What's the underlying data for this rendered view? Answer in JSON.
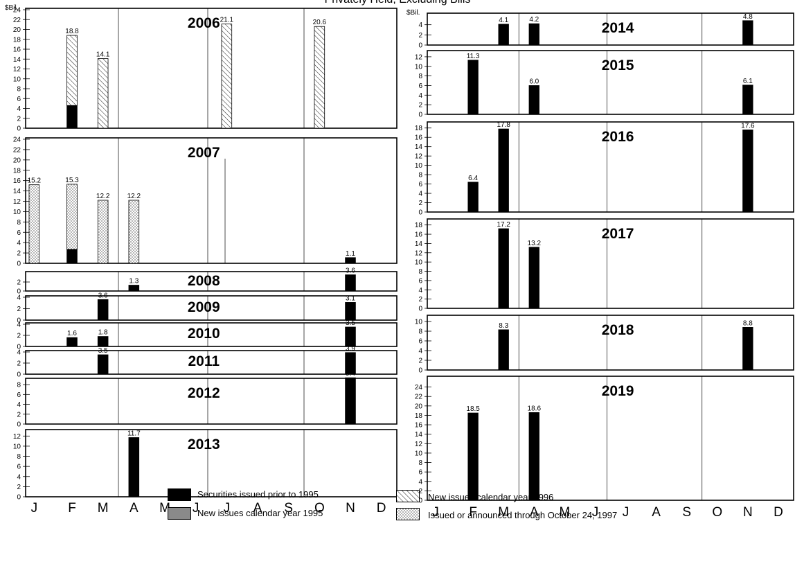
{
  "title": "Privately Held, Excluding Bills",
  "y_unit": "$Bil.",
  "months": [
    "J",
    "F",
    "M",
    "A",
    "M",
    "J",
    "J",
    "A",
    "S",
    "O",
    "N",
    "D"
  ],
  "chart_data": [
    {
      "type": "bar",
      "year": "2006",
      "ylim": [
        0,
        24
      ],
      "yticks": [
        0,
        2,
        4,
        6,
        8,
        10,
        12,
        14,
        16,
        18,
        20,
        22,
        24
      ],
      "unit": "$Bil.",
      "bars": [
        {
          "month": "F",
          "total": 18.8,
          "label": "18.8",
          "segments": [
            {
              "series": "Securities issued prior to 1995",
              "value": 4.6
            },
            {
              "series": "New issues calendar year 1996",
              "value": 14.2
            }
          ]
        },
        {
          "month": "M",
          "total": 14.1,
          "label": "14.1",
          "segments": [
            {
              "series": "New issues calendar year 1996",
              "value": 14.1
            }
          ]
        },
        {
          "month": "J",
          "total": 21.1,
          "label": "21.1",
          "segments": [
            {
              "series": "New issues calendar year 1996",
              "value": 21.1
            }
          ]
        },
        {
          "month": "O",
          "total": 20.6,
          "label": "20.6",
          "segments": [
            {
              "series": "New issues calendar year 1996",
              "value": 20.6
            }
          ]
        }
      ]
    },
    {
      "type": "bar",
      "year": "2007",
      "ylim": [
        0,
        24
      ],
      "yticks": [
        0,
        2,
        4,
        6,
        8,
        10,
        12,
        14,
        16,
        18,
        20,
        22,
        24
      ],
      "bars": [
        {
          "month": "J",
          "total": 15.2,
          "label": "15.2",
          "segments": [
            {
              "series": "Issued or announced through October 24, 1997",
              "value": 15.2
            }
          ]
        },
        {
          "month": "F",
          "total": 15.3,
          "label": "15.3",
          "segments": [
            {
              "series": "Securities issued prior to 1995",
              "value": 2.7
            },
            {
              "series": "Issued or announced through October 24, 1997",
              "value": 12.6
            }
          ]
        },
        {
          "month": "M",
          "total": 12.2,
          "label": "12.2",
          "segments": [
            {
              "series": "Issued or announced through October 24, 1997",
              "value": 12.2
            }
          ]
        },
        {
          "month": "A",
          "total": 12.2,
          "label": "12.2",
          "segments": [
            {
              "series": "Issued or announced through October 24, 1997",
              "value": 12.2
            }
          ]
        },
        {
          "month": "N",
          "total": 1.1,
          "label": "1.1",
          "segments": [
            {
              "series": "Securities issued prior to 1995",
              "value": 1.1
            }
          ]
        }
      ]
    },
    {
      "type": "bar",
      "year": "2008",
      "ylim": [
        0,
        4
      ],
      "yticks": [
        0,
        2
      ],
      "bars": [
        {
          "month": "A",
          "total": 1.3,
          "label": "1.3",
          "segments": [
            {
              "series": "Securities issued prior to 1995",
              "value": 1.3
            }
          ]
        },
        {
          "month": "N",
          "total": 3.6,
          "label": "3.6",
          "segments": [
            {
              "series": "Securities issued prior to 1995",
              "value": 3.6
            }
          ]
        }
      ]
    },
    {
      "type": "bar",
      "year": "2009",
      "ylim": [
        0,
        4
      ],
      "yticks": [
        0,
        2,
        4
      ],
      "bars": [
        {
          "month": "M",
          "total": 3.6,
          "label": "3.6",
          "segments": [
            {
              "series": "Securities issued prior to 1995",
              "value": 3.6
            }
          ]
        },
        {
          "month": "N",
          "total": 3.1,
          "label": "3.1",
          "segments": [
            {
              "series": "Securities issued prior to 1995",
              "value": 3.1
            }
          ]
        }
      ]
    },
    {
      "type": "bar",
      "year": "2010",
      "ylim": [
        0,
        4
      ],
      "yticks": [
        0,
        2,
        4
      ],
      "bars": [
        {
          "month": "F",
          "total": 1.6,
          "label": "1.6",
          "segments": [
            {
              "series": "Securities issued prior to 1995",
              "value": 1.6
            }
          ]
        },
        {
          "month": "M",
          "total": 1.8,
          "label": "1.8",
          "segments": [
            {
              "series": "Securities issued prior to 1995",
              "value": 1.8
            }
          ]
        },
        {
          "month": "N",
          "total": 3.5,
          "label": "3.5",
          "segments": [
            {
              "series": "Securities issued prior to 1995",
              "value": 3.5
            }
          ]
        }
      ]
    },
    {
      "type": "bar",
      "year": "2011",
      "ylim": [
        0,
        4
      ],
      "yticks": [
        0,
        2,
        4
      ],
      "bars": [
        {
          "month": "M",
          "total": 3.5,
          "label": "3.5",
          "segments": [
            {
              "series": "Securities issued prior to 1995",
              "value": 3.5
            }
          ]
        },
        {
          "month": "N",
          "total": 3.9,
          "label": "3.9",
          "segments": [
            {
              "series": "Securities issued prior to 1995",
              "value": 3.9
            }
          ]
        }
      ]
    },
    {
      "type": "bar",
      "year": "2012",
      "ylim": [
        0,
        9
      ],
      "yticks": [
        0,
        2,
        4,
        6,
        8
      ],
      "bars": [
        {
          "month": "N",
          "total": 9.4,
          "label": "9.4",
          "segments": [
            {
              "series": "Securities issued prior to 1995",
              "value": 9.4
            }
          ]
        }
      ]
    },
    {
      "type": "bar",
      "year": "2013",
      "ylim": [
        0,
        13
      ],
      "yticks": [
        0,
        2,
        4,
        6,
        8,
        10,
        12
      ],
      "bars": [
        {
          "month": "A",
          "total": 11.7,
          "label": "11.7",
          "segments": [
            {
              "series": "Securities issued prior to 1995",
              "value": 11.7
            }
          ]
        }
      ]
    },
    {
      "type": "bar",
      "year": "2014",
      "ylim": [
        0,
        6
      ],
      "yticks": [
        0,
        2,
        4
      ],
      "unit": "$Bil.",
      "bars": [
        {
          "month": "M",
          "total": 4.1,
          "label": "4.1",
          "segments": [
            {
              "series": "Securities issued prior to 1995",
              "value": 4.1
            }
          ]
        },
        {
          "month": "A",
          "total": 4.2,
          "label": "4.2",
          "segments": [
            {
              "series": "Securities issued prior to 1995",
              "value": 4.2
            }
          ]
        },
        {
          "month": "N",
          "total": 4.8,
          "label": "4.8",
          "segments": [
            {
              "series": "Securities issued prior to 1995",
              "value": 4.8
            }
          ]
        }
      ]
    },
    {
      "type": "bar",
      "year": "2015",
      "ylim": [
        0,
        13
      ],
      "yticks": [
        0,
        2,
        4,
        6,
        8,
        10,
        12
      ],
      "bars": [
        {
          "month": "F",
          "total": 11.3,
          "label": "11.3",
          "segments": [
            {
              "series": "Securities issued prior to 1995",
              "value": 11.3
            }
          ]
        },
        {
          "month": "A",
          "total": 6.0,
          "label": "6.0",
          "segments": [
            {
              "series": "Securities issued prior to 1995",
              "value": 6.0
            }
          ]
        },
        {
          "month": "N",
          "total": 6.1,
          "label": "6.1",
          "segments": [
            {
              "series": "Securities issued prior to 1995",
              "value": 6.1
            }
          ]
        }
      ]
    },
    {
      "type": "bar",
      "year": "2016",
      "ylim": [
        0,
        19
      ],
      "yticks": [
        0,
        2,
        4,
        6,
        8,
        10,
        12,
        14,
        16,
        18
      ],
      "bars": [
        {
          "month": "F",
          "total": 6.4,
          "label": "6.4",
          "segments": [
            {
              "series": "Securities issued prior to 1995",
              "value": 6.4
            }
          ]
        },
        {
          "month": "M",
          "total": 17.8,
          "label": "17.8",
          "segments": [
            {
              "series": "Securities issued prior to 1995",
              "value": 17.8
            }
          ]
        },
        {
          "month": "N",
          "total": 17.6,
          "label": "17.6",
          "segments": [
            {
              "series": "Securities issued prior to 1995",
              "value": 17.6
            }
          ]
        }
      ]
    },
    {
      "type": "bar",
      "year": "2017",
      "ylim": [
        0,
        19
      ],
      "yticks": [
        0,
        2,
        4,
        6,
        8,
        10,
        12,
        14,
        16,
        18
      ],
      "bars": [
        {
          "month": "M",
          "total": 17.2,
          "label": "17.2",
          "segments": [
            {
              "series": "Securities issued prior to 1995",
              "value": 17.2
            }
          ]
        },
        {
          "month": "A",
          "total": 13.2,
          "label": "13.2",
          "segments": [
            {
              "series": "Securities issued prior to 1995",
              "value": 13.2
            }
          ]
        }
      ]
    },
    {
      "type": "bar",
      "year": "2018",
      "ylim": [
        0,
        11
      ],
      "yticks": [
        0,
        2,
        4,
        6,
        8,
        10
      ],
      "bars": [
        {
          "month": "M",
          "total": 8.3,
          "label": "8.3",
          "segments": [
            {
              "series": "Securities issued prior to 1995",
              "value": 8.3
            }
          ]
        },
        {
          "month": "N",
          "total": 8.8,
          "label": "8.8",
          "segments": [
            {
              "series": "Securities issued prior to 1995",
              "value": 8.8
            }
          ]
        }
      ]
    },
    {
      "type": "bar",
      "year": "2019",
      "ylim": [
        0,
        26
      ],
      "yticks": [
        0,
        2,
        4,
        6,
        8,
        10,
        12,
        14,
        16,
        18,
        20,
        22,
        24
      ],
      "bars": [
        {
          "month": "F",
          "total": 18.5,
          "label": "18.5",
          "segments": [
            {
              "series": "Securities issued prior to 1995",
              "value": 18.5
            }
          ]
        },
        {
          "month": "A",
          "total": 18.6,
          "label": "18.6",
          "segments": [
            {
              "series": "Securities issued prior to 1995",
              "value": 18.6
            }
          ]
        }
      ]
    }
  ],
  "legend": [
    {
      "key": "prior1995",
      "label": "Securities issued prior to 1995"
    },
    {
      "key": "new1995",
      "label": "New issues calendar year 1995"
    },
    {
      "key": "new1996",
      "label": "New issues calendar year 1996"
    },
    {
      "key": "issued1997",
      "label": "Issued or announced through October 24, 1997"
    }
  ]
}
